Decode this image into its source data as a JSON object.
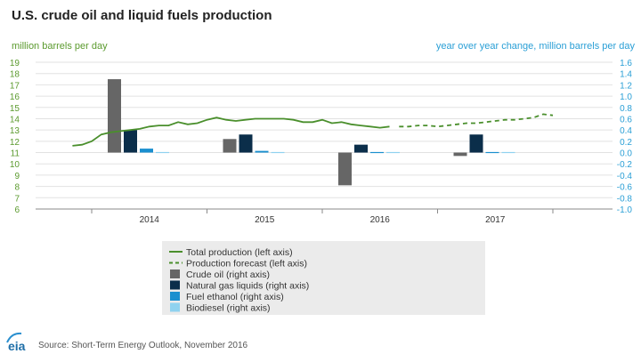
{
  "chart_data": {
    "type": "bar+line",
    "title": "U.S. crude oil and liquid fuels production",
    "left_axis_label": "million barrels per day",
    "right_axis_label": "year over year change, million barrels per day",
    "left_ylim": [
      6,
      19
    ],
    "left_ticks": [
      "6",
      "7",
      "8",
      "9",
      "10",
      "11",
      "12",
      "13",
      "14",
      "15",
      "16",
      "17",
      "18",
      "19"
    ],
    "right_ylim": [
      -1.0,
      1.6
    ],
    "right_ticks": [
      "-1.0",
      "-0.8",
      "-0.6",
      "-0.4",
      "-0.2",
      "0.0",
      "0.2",
      "0.4",
      "0.6",
      "0.8",
      "1.0",
      "1.2",
      "1.4",
      "1.6"
    ],
    "years": [
      "2014",
      "2015",
      "2016",
      "2017"
    ],
    "series": [
      {
        "name": "Crude oil (right axis)",
        "key": "crude",
        "color": "#666666",
        "values": [
          1.3,
          0.24,
          -0.58,
          -0.06
        ]
      },
      {
        "name": "Natural gas liquids (right axis)",
        "key": "ngl",
        "color": "#0b2e4a",
        "values": [
          0.4,
          0.32,
          0.14,
          0.32
        ]
      },
      {
        "name": "Fuel ethanol (right axis)",
        "key": "ethanol",
        "color": "#1a8fcf",
        "values": [
          0.07,
          0.03,
          0.01,
          0.01
        ]
      },
      {
        "name": "Biodiesel (right axis)",
        "key": "biodiesel",
        "color": "#8fd2ef",
        "values": [
          0.01,
          0.01,
          0.01,
          0.01
        ]
      }
    ],
    "total_production": {
      "name": "Total production (left axis)",
      "color": "#4a8f2c",
      "start": "2013-11",
      "values": [
        11.6,
        11.7,
        12.0,
        12.6,
        12.8,
        12.9,
        13.0,
        13.1,
        13.3,
        13.4,
        13.4,
        13.7,
        13.5,
        13.6,
        13.9,
        14.1,
        13.9,
        13.8,
        13.9,
        14.0,
        14.0,
        14.0,
        14.0,
        13.9,
        13.7,
        13.7,
        13.9,
        13.6,
        13.7,
        13.5,
        13.4,
        13.3,
        13.2,
        13.3
      ]
    },
    "production_forecast": {
      "name": "Production forecast (left axis)",
      "color": "#4a8f2c",
      "start": "2016-09",
      "values": [
        13.3,
        13.3,
        13.4,
        13.4,
        13.3,
        13.4,
        13.5,
        13.6,
        13.6,
        13.7,
        13.8,
        13.9,
        13.9,
        14.0,
        14.1,
        14.4,
        14.3
      ]
    }
  },
  "legend": [
    {
      "label": "Total production (left axis)",
      "type": "line",
      "color": "#4a8f2c"
    },
    {
      "label": "Production forecast (left axis)",
      "type": "dash",
      "color": "#4a8f2c"
    },
    {
      "label": "Crude oil (right axis)",
      "type": "box",
      "color": "#666666"
    },
    {
      "label": "Natural gas liquids (right axis)",
      "type": "box",
      "color": "#0b2e4a"
    },
    {
      "label": "Fuel ethanol (right axis)",
      "type": "box",
      "color": "#1a8fcf"
    },
    {
      "label": "Biodiesel (right axis)",
      "type": "box",
      "color": "#8fd2ef"
    }
  ],
  "footer": {
    "logo_text": "eia",
    "source": "Source: Short-Term Energy Outlook, November 2016"
  }
}
